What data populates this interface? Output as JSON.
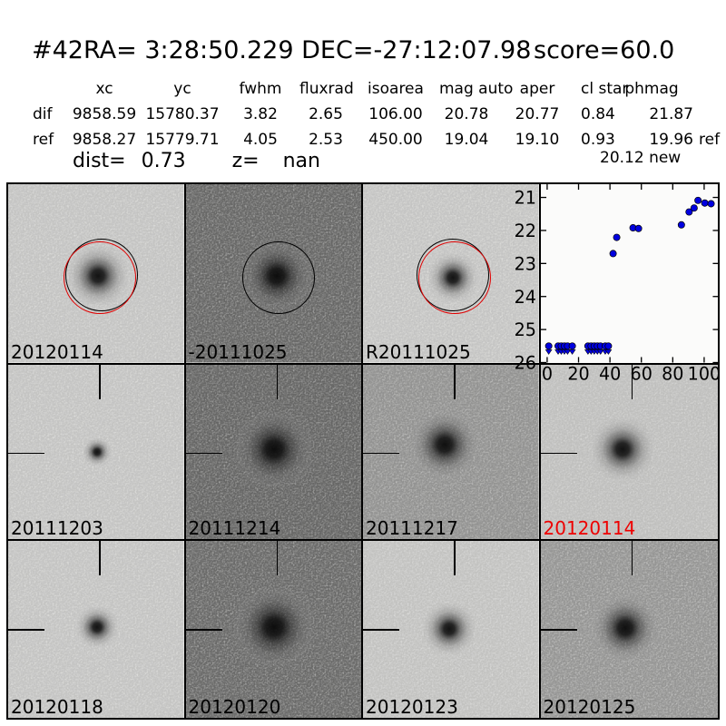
{
  "header": {
    "id": "#42",
    "coords": "RA= 3:28:50.229 DEC=-27:12:07.98",
    "score": "score=60.0"
  },
  "table": {
    "columns": [
      "xc",
      "yc",
      "fwhm",
      "fluxrad",
      "isoarea",
      "mag auto",
      "aper",
      "cl star",
      "phmag"
    ],
    "rows": [
      {
        "label": "dif",
        "values": [
          "9858.59",
          "15780.37",
          "3.82",
          "2.65",
          "106.00",
          "20.78",
          "20.77",
          "0.84",
          "21.87"
        ],
        "suffix": ""
      },
      {
        "label": "ref",
        "values": [
          "9858.27",
          "15779.71",
          "4.05",
          "2.53",
          "450.00",
          "19.04",
          "19.10",
          "0.93",
          "19.96"
        ],
        "suffix": "ref"
      }
    ],
    "extra_phmag": "20.12 new",
    "dist_label": "dist=",
    "dist_value": "0.73",
    "z_label": "z=",
    "z_value": "nan"
  },
  "panels": [
    {
      "label": "20120114",
      "label_color": "#000000"
    },
    {
      "label": "-20111025",
      "label_color": "#000000"
    },
    {
      "label": "R20111025",
      "label_color": "#000000"
    },
    {
      "label": "",
      "label_color": "#000000"
    },
    {
      "label": "20111203",
      "label_color": "#000000"
    },
    {
      "label": "20111214",
      "label_color": "#000000"
    },
    {
      "label": "20111217",
      "label_color": "#000000"
    },
    {
      "label": "20120114",
      "label_color": "#ee0000"
    },
    {
      "label": "20120118",
      "label_color": "#000000"
    },
    {
      "label": "20120120",
      "label_color": "#000000"
    },
    {
      "label": "20120123",
      "label_color": "#000000"
    },
    {
      "label": "20120125",
      "label_color": "#000000"
    }
  ],
  "chart_data": {
    "type": "scatter",
    "title": "",
    "xlabel": "",
    "ylabel": "",
    "xlim": [
      -4,
      109
    ],
    "ylim": [
      26,
      20.6
    ],
    "y_inverted": true,
    "xticks": [
      0,
      20,
      40,
      60,
      80,
      100
    ],
    "yticks": [
      21,
      22,
      23,
      24,
      25,
      26
    ],
    "grid": false,
    "legend": false,
    "marker_color": "#0000e0",
    "detections": {
      "x": [
        42.0,
        44.3,
        54.7,
        58.2,
        85.5,
        90.4,
        93.6,
        96.1,
        100.4,
        104.4
      ],
      "y": [
        22.7,
        22.21,
        21.92,
        21.94,
        21.83,
        21.44,
        21.32,
        21.09,
        21.17,
        21.19
      ]
    },
    "upper_limits": {
      "x": [
        1,
        7,
        9,
        11,
        13,
        16,
        26,
        28,
        30,
        32,
        34,
        37,
        39
      ],
      "y": [
        25.5,
        25.5,
        25.5,
        25.5,
        25.5,
        25.5,
        25.5,
        25.5,
        25.5,
        25.5,
        25.5,
        25.5,
        25.5
      ]
    }
  }
}
